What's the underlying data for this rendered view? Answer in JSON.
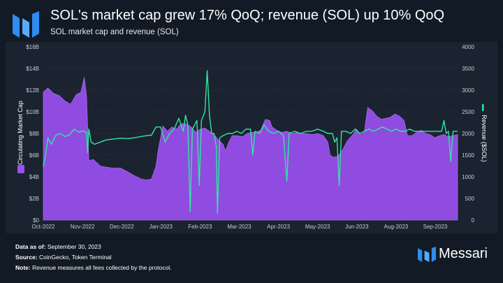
{
  "header": {
    "title": "SOL's market cap grew 17% QoQ; revenue (SOL) up 10% QoQ",
    "subtitle": "SOL market cap and revenue (SOL)"
  },
  "footer": {
    "data_as_of_label": "Data as of:",
    "data_as_of_value": "September 30, 2023",
    "source_label": "Source:",
    "source_value": "CoinGecko, Token Terminal",
    "note_label": "Note:",
    "note_value": "Revenue measures all fees collected by the protocol."
  },
  "brand": {
    "name": "Messari",
    "logo_icon": "messari-logo-icon"
  },
  "colors": {
    "background": "#111a25",
    "panel": "#1b2330",
    "market_cap": "#9a4ff0",
    "revenue": "#2ee8a0"
  },
  "chart_data": {
    "type": "area",
    "x_start": "2022-10-01",
    "x_end": "2023-09-30",
    "x_ticks": [
      "Oct-2022",
      "Nov-2022",
      "Dec-2022",
      "Jan-2023",
      "Feb-2023",
      "Mar-2023",
      "Apr-2023",
      "May-2023",
      "Jun-2023",
      "Aug-2023",
      "Sep-2023"
    ],
    "y_left": {
      "label": "Circulating Market Cap",
      "min": 0,
      "max": 16,
      "ticks": [
        "$0",
        "$2B",
        "$4B",
        "$6B",
        "$8B",
        "$10B",
        "$12B",
        "$14B",
        "$16B"
      ]
    },
    "y_right": {
      "label": "Revenue ($SOL)",
      "min": 0,
      "max": 4000,
      "ticks": [
        "0",
        "500",
        "1000",
        "1500",
        "2000",
        "2500",
        "3000",
        "3500",
        "4000"
      ]
    },
    "grid": true,
    "legend": "left and right of the axis titles",
    "series": [
      {
        "name": "Circulating Market Cap",
        "kind": "area",
        "axis": "left",
        "unit": "USD billions",
        "points": [
          [
            "2022-10-01",
            11.8
          ],
          [
            "2022-10-05",
            12.2
          ],
          [
            "2022-10-10",
            11.7
          ],
          [
            "2022-10-15",
            11.5
          ],
          [
            "2022-10-20",
            11.0
          ],
          [
            "2022-10-25",
            10.7
          ],
          [
            "2022-10-30",
            11.6
          ],
          [
            "2022-11-03",
            11.8
          ],
          [
            "2022-11-06",
            13.2
          ],
          [
            "2022-11-08",
            11.5
          ],
          [
            "2022-11-10",
            5.5
          ],
          [
            "2022-11-14",
            5.6
          ],
          [
            "2022-11-20",
            5.0
          ],
          [
            "2022-11-25",
            4.9
          ],
          [
            "2022-12-01",
            4.8
          ],
          [
            "2022-12-08",
            4.8
          ],
          [
            "2022-12-15",
            4.4
          ],
          [
            "2022-12-20",
            4.1
          ],
          [
            "2022-12-26",
            3.8
          ],
          [
            "2022-12-31",
            3.7
          ],
          [
            "2023-01-04",
            3.8
          ],
          [
            "2023-01-08",
            5.0
          ],
          [
            "2023-01-10",
            6.5
          ],
          [
            "2023-01-14",
            8.7
          ],
          [
            "2023-01-18",
            8.2
          ],
          [
            "2023-01-22",
            8.6
          ],
          [
            "2023-01-26",
            8.4
          ],
          [
            "2023-01-30",
            8.9
          ],
          [
            "2023-02-03",
            8.9
          ],
          [
            "2023-02-08",
            8.6
          ],
          [
            "2023-02-12",
            8.1
          ],
          [
            "2023-02-16",
            8.4
          ],
          [
            "2023-02-20",
            8.5
          ],
          [
            "2023-02-24",
            8.2
          ],
          [
            "2023-02-28",
            7.9
          ],
          [
            "2023-03-04",
            7.4
          ],
          [
            "2023-03-08",
            7.0
          ],
          [
            "2023-03-10",
            6.4
          ],
          [
            "2023-03-13",
            7.2
          ],
          [
            "2023-03-16",
            7.8
          ],
          [
            "2023-03-20",
            7.8
          ],
          [
            "2023-03-25",
            7.7
          ],
          [
            "2023-03-29",
            8.0
          ],
          [
            "2023-04-02",
            8.1
          ],
          [
            "2023-04-06",
            8.1
          ],
          [
            "2023-04-10",
            8.3
          ],
          [
            "2023-04-14",
            9.3
          ],
          [
            "2023-04-18",
            9.2
          ],
          [
            "2023-04-20",
            8.6
          ],
          [
            "2023-04-24",
            8.3
          ],
          [
            "2023-04-28",
            8.1
          ],
          [
            "2023-05-03",
            8.2
          ],
          [
            "2023-05-08",
            8.0
          ],
          [
            "2023-05-12",
            8.1
          ],
          [
            "2023-05-16",
            8.0
          ],
          [
            "2023-05-20",
            8.0
          ],
          [
            "2023-05-25",
            7.9
          ],
          [
            "2023-05-30",
            8.0
          ],
          [
            "2023-06-04",
            7.8
          ],
          [
            "2023-06-08",
            7.2
          ],
          [
            "2023-06-10",
            6.0
          ],
          [
            "2023-06-13",
            5.8
          ],
          [
            "2023-06-17",
            5.9
          ],
          [
            "2023-06-21",
            6.5
          ],
          [
            "2023-06-25",
            7.3
          ],
          [
            "2023-06-30",
            7.9
          ],
          [
            "2023-07-03",
            8.4
          ],
          [
            "2023-07-07",
            7.9
          ],
          [
            "2023-07-10",
            8.1
          ],
          [
            "2023-07-13",
            10.4
          ],
          [
            "2023-07-17",
            10.1
          ],
          [
            "2023-07-21",
            9.6
          ],
          [
            "2023-07-25",
            9.3
          ],
          [
            "2023-07-29",
            9.4
          ],
          [
            "2023-08-02",
            9.5
          ],
          [
            "2023-08-06",
            9.8
          ],
          [
            "2023-08-10",
            9.6
          ],
          [
            "2023-08-14",
            9.2
          ],
          [
            "2023-08-17",
            7.8
          ],
          [
            "2023-08-21",
            7.8
          ],
          [
            "2023-08-25",
            8.1
          ],
          [
            "2023-08-29",
            8.3
          ],
          [
            "2023-09-02",
            8.0
          ],
          [
            "2023-09-06",
            7.9
          ],
          [
            "2023-09-10",
            7.6
          ],
          [
            "2023-09-14",
            7.8
          ],
          [
            "2023-09-18",
            7.9
          ],
          [
            "2023-09-22",
            7.7
          ],
          [
            "2023-09-26",
            7.8
          ],
          [
            "2023-09-30",
            7.9
          ]
        ]
      },
      {
        "name": "Revenue ($SOL)",
        "kind": "line",
        "axis": "right",
        "unit": "SOL",
        "points": [
          [
            "2022-10-01",
            1230
          ],
          [
            "2022-10-03",
            1500
          ],
          [
            "2022-10-05",
            1900
          ],
          [
            "2022-10-08",
            1750
          ],
          [
            "2022-10-12",
            1960
          ],
          [
            "2022-10-16",
            2000
          ],
          [
            "2022-10-20",
            1930
          ],
          [
            "2022-10-24",
            1970
          ],
          [
            "2022-10-28",
            2100
          ],
          [
            "2022-11-01",
            2030
          ],
          [
            "2022-11-05",
            2060
          ],
          [
            "2022-11-08",
            2020
          ],
          [
            "2022-11-09",
            1550
          ],
          [
            "2022-11-10",
            2100
          ],
          [
            "2022-11-12",
            1800
          ],
          [
            "2022-11-15",
            1750
          ],
          [
            "2022-11-20",
            1800
          ],
          [
            "2022-11-25",
            1850
          ],
          [
            "2022-12-01",
            1870
          ],
          [
            "2022-12-08",
            1890
          ],
          [
            "2022-12-14",
            1880
          ],
          [
            "2022-12-20",
            1900
          ],
          [
            "2022-12-26",
            1930
          ],
          [
            "2022-12-31",
            1950
          ],
          [
            "2023-01-04",
            1960
          ],
          [
            "2023-01-08",
            2150
          ],
          [
            "2023-01-12",
            2150
          ],
          [
            "2023-01-16",
            1800
          ],
          [
            "2023-01-20",
            2000
          ],
          [
            "2023-01-24",
            2100
          ],
          [
            "2023-01-28",
            2350
          ],
          [
            "2023-02-01",
            2050
          ],
          [
            "2023-02-03",
            2420
          ],
          [
            "2023-02-05",
            2200
          ],
          [
            "2023-02-07",
            200
          ],
          [
            "2023-02-09",
            2100
          ],
          [
            "2023-02-11",
            2200
          ],
          [
            "2023-02-13",
            2300
          ],
          [
            "2023-02-15",
            800
          ],
          [
            "2023-02-17",
            2300
          ],
          [
            "2023-02-20",
            2500
          ],
          [
            "2023-02-22",
            3450
          ],
          [
            "2023-02-24",
            2400
          ],
          [
            "2023-02-26",
            2000
          ],
          [
            "2023-02-28",
            2000
          ],
          [
            "2023-03-02",
            1700
          ],
          [
            "2023-03-03",
            150
          ],
          [
            "2023-03-05",
            1900
          ],
          [
            "2023-03-08",
            1950
          ],
          [
            "2023-03-12",
            2000
          ],
          [
            "2023-03-16",
            2000
          ],
          [
            "2023-03-20",
            2050
          ],
          [
            "2023-03-24",
            2000
          ],
          [
            "2023-03-28",
            2100
          ],
          [
            "2023-04-01",
            2100
          ],
          [
            "2023-04-03",
            1500
          ],
          [
            "2023-04-05",
            2050
          ],
          [
            "2023-04-09",
            2000
          ],
          [
            "2023-04-13",
            2200
          ],
          [
            "2023-04-17",
            2050
          ],
          [
            "2023-04-21",
            2000
          ],
          [
            "2023-04-26",
            2050
          ],
          [
            "2023-04-30",
            1950
          ],
          [
            "2023-05-03",
            900
          ],
          [
            "2023-05-05",
            2000
          ],
          [
            "2023-05-10",
            2050
          ],
          [
            "2023-05-15",
            2000
          ],
          [
            "2023-05-20",
            2050
          ],
          [
            "2023-05-25",
            2050
          ],
          [
            "2023-05-30",
            2100
          ],
          [
            "2023-06-04",
            2050
          ],
          [
            "2023-06-08",
            2000
          ],
          [
            "2023-06-12",
            2000
          ],
          [
            "2023-06-14",
            1800
          ],
          [
            "2023-06-16",
            1900
          ],
          [
            "2023-06-18",
            800
          ],
          [
            "2023-06-20",
            2050
          ],
          [
            "2023-06-24",
            2050
          ],
          [
            "2023-06-28",
            2000
          ],
          [
            "2023-07-02",
            2100
          ],
          [
            "2023-07-06",
            2000
          ],
          [
            "2023-07-10",
            2050
          ],
          [
            "2023-07-14",
            2100
          ],
          [
            "2023-07-18",
            2050
          ],
          [
            "2023-07-22",
            2100
          ],
          [
            "2023-07-26",
            2150
          ],
          [
            "2023-07-30",
            2100
          ],
          [
            "2023-08-03",
            2050
          ],
          [
            "2023-08-07",
            2100
          ],
          [
            "2023-08-11",
            2050
          ],
          [
            "2023-08-15",
            2050
          ],
          [
            "2023-08-19",
            2100
          ],
          [
            "2023-08-23",
            2050
          ],
          [
            "2023-08-27",
            2050
          ],
          [
            "2023-08-31",
            2050
          ],
          [
            "2023-09-04",
            2050
          ],
          [
            "2023-09-08",
            2050
          ],
          [
            "2023-09-12",
            2050
          ],
          [
            "2023-09-16",
            2050
          ],
          [
            "2023-09-18",
            2300
          ],
          [
            "2023-09-20",
            2000
          ],
          [
            "2023-09-22",
            2050
          ],
          [
            "2023-09-24",
            1350
          ],
          [
            "2023-09-26",
            2050
          ],
          [
            "2023-09-30",
            2050
          ]
        ]
      }
    ]
  }
}
